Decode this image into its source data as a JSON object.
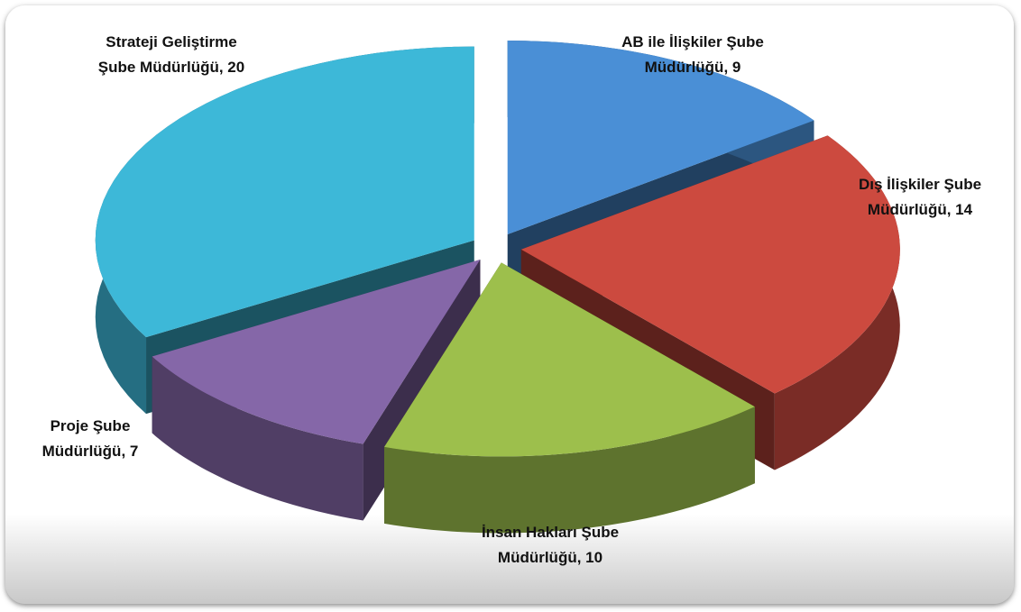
{
  "chart_data": {
    "type": "pie3d",
    "values": [
      9,
      14,
      10,
      7,
      20
    ],
    "value_labels": [
      [
        "AB ile İlişkiler Şube",
        "Müdürlüğü, 9"
      ],
      [
        "Dış İlişkiler Şube",
        "Müdürlüğü, 14"
      ],
      [
        "İnsan Hakları Şube",
        "Müdürlüğü, 10"
      ],
      [
        "Proje Şube",
        "Müdürlüğü, 7"
      ],
      [
        "Strateji Geliştirme",
        "Şube Müdürlüğü, 20"
      ]
    ],
    "colors": [
      "#4a8fd6",
      "#cc4a3f",
      "#9dbf4c",
      "#8567a8",
      "#3db8d8"
    ]
  }
}
